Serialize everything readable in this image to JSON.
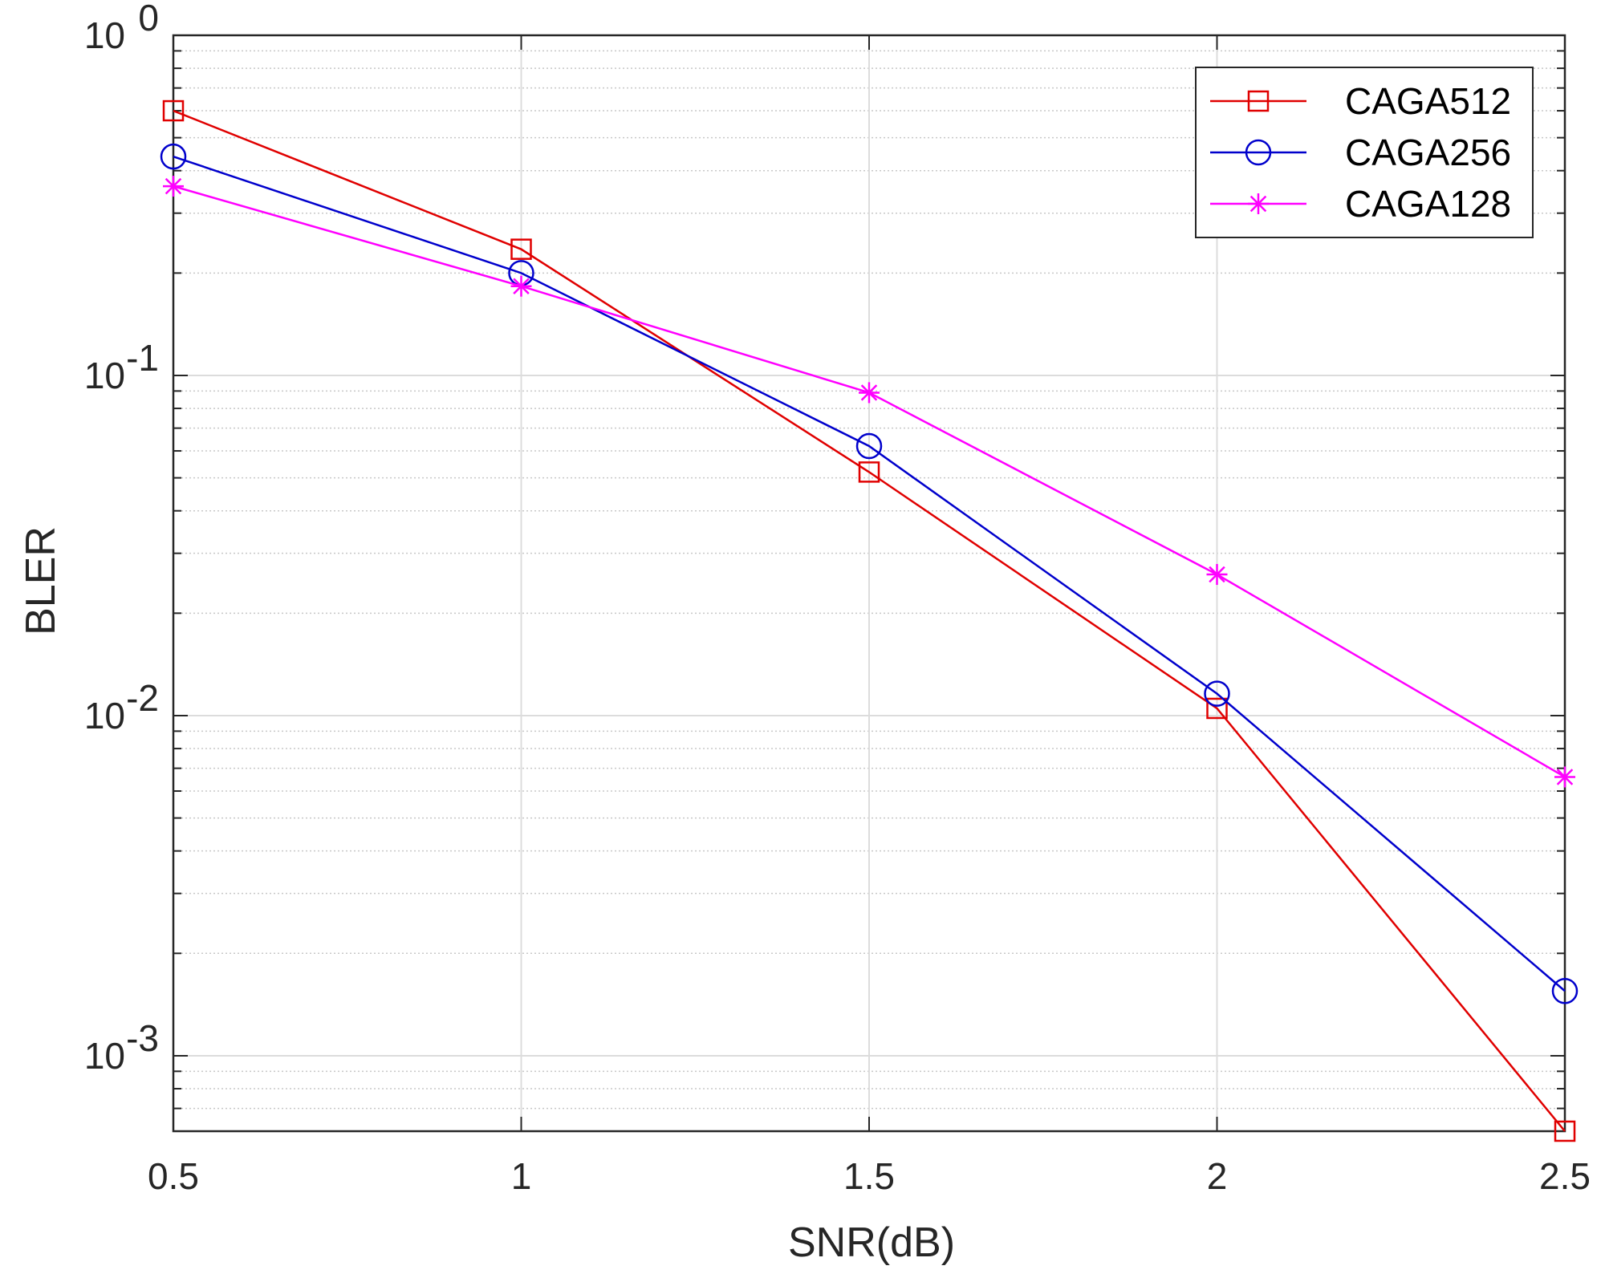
{
  "chart_data": {
    "type": "line",
    "title": "",
    "xlabel": "SNR(dB)",
    "ylabel": "BLER",
    "yscale": "log",
    "xlim": [
      0.5,
      2.5
    ],
    "ylim": [
      0.0006,
      1
    ],
    "grid": true,
    "legend_position": "top-right",
    "x": [
      0.5,
      1,
      1.5,
      2,
      2.5
    ],
    "x_ticks": [
      0.5,
      1,
      1.5,
      2,
      2.5
    ],
    "x_tick_labels": [
      "0.5",
      "1",
      "1.5",
      "2",
      "2.5"
    ],
    "y_ticks": [
      {
        "value": 1,
        "base": "10",
        "exp": "0"
      },
      {
        "value": 0.1,
        "base": "10",
        "exp": "-1"
      },
      {
        "value": 0.01,
        "base": "10",
        "exp": "-2"
      },
      {
        "value": 0.001,
        "base": "10",
        "exp": "-3"
      }
    ],
    "series": [
      {
        "name": "CAGA512",
        "color": "#e00000",
        "marker": "square",
        "values": [
          0.6,
          0.235,
          0.052,
          0.0105,
          0.0006
        ]
      },
      {
        "name": "CAGA256",
        "color": "#0000cc",
        "marker": "circle",
        "values": [
          0.44,
          0.2,
          0.062,
          0.0116,
          0.00155
        ]
      },
      {
        "name": "CAGA128",
        "color": "#ff00ff",
        "marker": "asterisk",
        "values": [
          0.36,
          0.183,
          0.089,
          0.026,
          0.0066
        ]
      }
    ]
  }
}
